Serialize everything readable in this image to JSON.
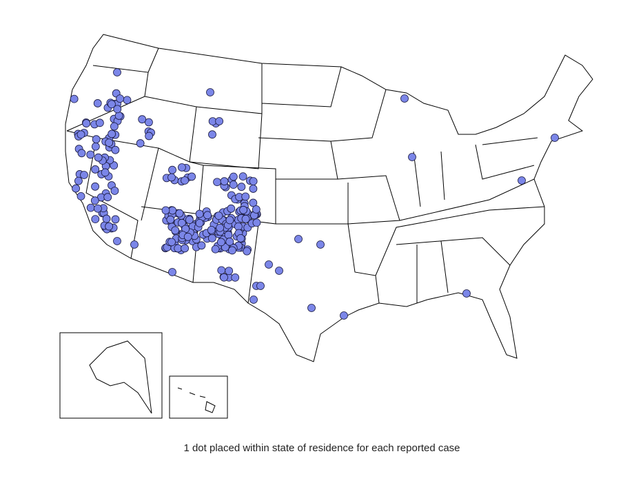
{
  "caption": "1 dot placed within state of residence for each reported case"
}
